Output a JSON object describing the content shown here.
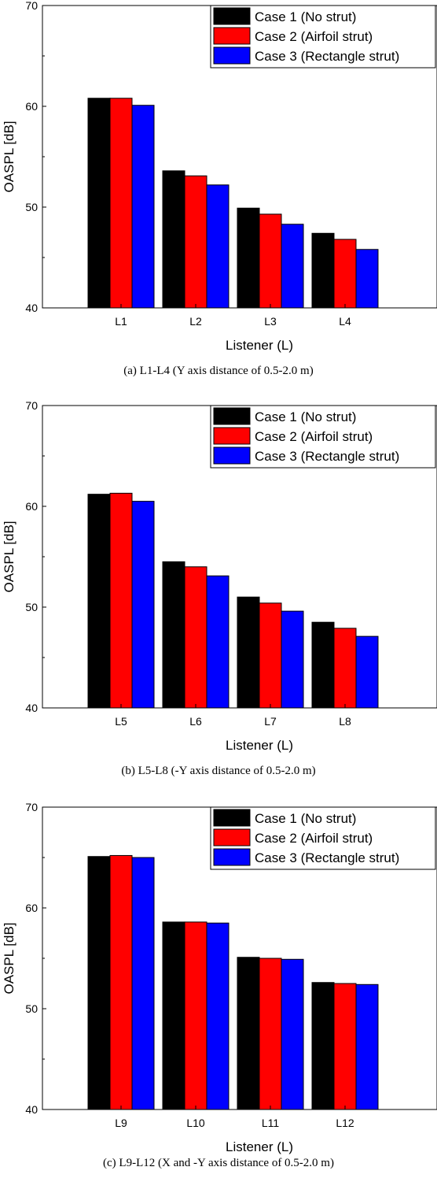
{
  "chart_data": [
    {
      "type": "bar",
      "caption": "(a) L1-L4 (Y axis distance of 0.5-2.0 m)",
      "categories": [
        "L1",
        "L2",
        "L3",
        "L4"
      ],
      "series": [
        {
          "name": "Case 1 (No strut)",
          "color": "#000000",
          "values": [
            60.8,
            53.6,
            49.9,
            47.4
          ]
        },
        {
          "name": "Case 2 (Airfoil strut)",
          "color": "#ff0000",
          "values": [
            60.8,
            53.1,
            49.3,
            46.8
          ]
        },
        {
          "name": "Case 3 (Rectangle strut)",
          "color": "#0000ff",
          "values": [
            60.1,
            52.2,
            48.3,
            45.8
          ]
        }
      ],
      "xlabel": "Listener (L)",
      "ylabel": "OASPL [dB]",
      "ylim": [
        40,
        70
      ],
      "yticks": [
        "40",
        "50",
        "60",
        "70"
      ],
      "legend": "top-right",
      "grid": false
    },
    {
      "type": "bar",
      "caption": "(b) L5-L8 (-Y axis distance of 0.5-2.0 m)",
      "categories": [
        "L5",
        "L6",
        "L7",
        "L8"
      ],
      "series": [
        {
          "name": "Case 1 (No strut)",
          "color": "#000000",
          "values": [
            61.2,
            54.5,
            51.0,
            48.5
          ]
        },
        {
          "name": "Case 2 (Airfoil strut)",
          "color": "#ff0000",
          "values": [
            61.3,
            54.0,
            50.4,
            47.9
          ]
        },
        {
          "name": "Case 3 (Rectangle strut)",
          "color": "#0000ff",
          "values": [
            60.5,
            53.1,
            49.6,
            47.1
          ]
        }
      ],
      "xlabel": "Listener (L)",
      "ylabel": "OASPL [dB]",
      "ylim": [
        40,
        70
      ],
      "yticks": [
        "40",
        "50",
        "60",
        "70"
      ],
      "legend": "top-right",
      "grid": false
    },
    {
      "type": "bar",
      "caption": "(c) L9-L12 (X and -Y axis distance of 0.5-2.0 m)",
      "categories": [
        "L9",
        "L10",
        "L11",
        "L12"
      ],
      "series": [
        {
          "name": "Case 1 (No strut)",
          "color": "#000000",
          "values": [
            65.1,
            58.6,
            55.1,
            52.6
          ]
        },
        {
          "name": "Case 2 (Airfoil strut)",
          "color": "#ff0000",
          "values": [
            65.2,
            58.6,
            55.0,
            52.5
          ]
        },
        {
          "name": "Case 3 (Rectangle strut)",
          "color": "#0000ff",
          "values": [
            65.0,
            58.5,
            54.9,
            52.4
          ]
        }
      ],
      "xlabel": "Listener (L)",
      "ylabel": "OASPL [dB]",
      "ylim": [
        40,
        70
      ],
      "yticks": [
        "40",
        "50",
        "60",
        "70"
      ],
      "legend": "top-right",
      "grid": false
    }
  ]
}
